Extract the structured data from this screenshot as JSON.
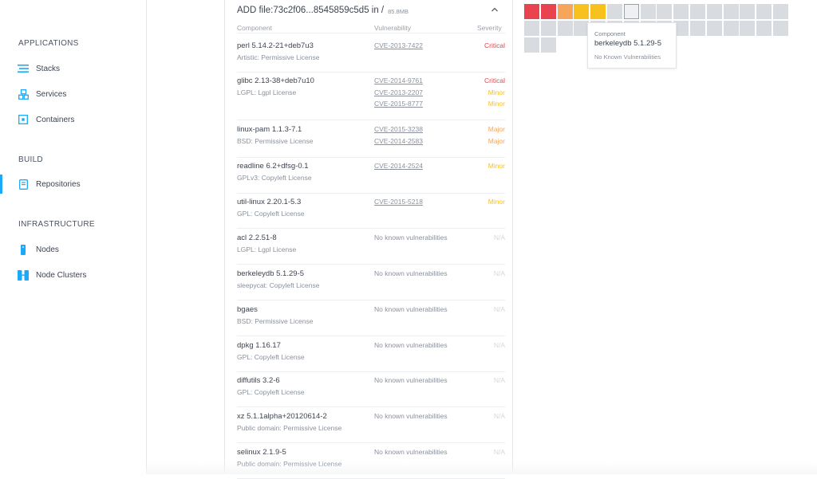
{
  "sidebar": {
    "sections": [
      {
        "title": "APPLICATIONS",
        "items": [
          {
            "label": "Stacks",
            "icon": "stacks-icon"
          },
          {
            "label": "Services",
            "icon": "services-icon"
          },
          {
            "label": "Containers",
            "icon": "containers-icon"
          }
        ]
      },
      {
        "title": "BUILD",
        "items": [
          {
            "label": "Repositories",
            "icon": "repositories-icon",
            "active": true
          }
        ]
      },
      {
        "title": "INFRASTRUCTURE",
        "items": [
          {
            "label": "Nodes",
            "icon": "nodes-icon"
          },
          {
            "label": "Node Clusters",
            "icon": "node-clusters-icon"
          }
        ]
      }
    ]
  },
  "layer": {
    "title": "ADD file:73c2f06...8545859c5d5 in /",
    "size": "85.8MB"
  },
  "columns": {
    "component": "Component",
    "vulnerability": "Vulnerability",
    "severity": "Severity"
  },
  "colors": {
    "critical": "#e8434f",
    "major": "#f6a55b",
    "minor": "#f7c21d",
    "none": "#d8dbe0",
    "accent": "#1aaaf8"
  },
  "components": [
    {
      "name": "perl 5.14.2-21+deb7u3",
      "license": "Artistic: Permissive License",
      "vulns": [
        {
          "id": "CVE-2013-7422",
          "severity": "Critical"
        }
      ]
    },
    {
      "name": "glibc 2.13-38+deb7u10",
      "license": "LGPL: Lgpl License",
      "vulns": [
        {
          "id": "CVE-2014-9761",
          "severity": "Critical"
        },
        {
          "id": "CVE-2013-2207",
          "severity": "Minor"
        },
        {
          "id": "CVE-2015-8777",
          "severity": "Minor"
        }
      ]
    },
    {
      "name": "linux-pam 1.1.3-7.1",
      "license": "BSD: Permissive License",
      "vulns": [
        {
          "id": "CVE-2015-3238",
          "severity": "Major"
        },
        {
          "id": "CVE-2014-2583",
          "severity": "Major"
        }
      ]
    },
    {
      "name": "readline 6.2+dfsg-0.1",
      "license": "GPLv3: Copyleft License",
      "vulns": [
        {
          "id": "CVE-2014-2524",
          "severity": "Minor"
        }
      ]
    },
    {
      "name": "util-linux 2.20.1-5.3",
      "license": "GPL: Copyleft License",
      "vulns": [
        {
          "id": "CVE-2015-5218",
          "severity": "Minor"
        }
      ]
    },
    {
      "name": "acl 2.2.51-8",
      "license": "LGPL: Lgpl License",
      "none": "No known vulnerabilities",
      "na": "N/A"
    },
    {
      "name": "berkeleydb 5.1.29-5",
      "license": "sleepycat: Copyleft License",
      "none": "No known vulnerabilities",
      "na": "N/A"
    },
    {
      "name": "bgaes",
      "license": "BSD: Permissive License",
      "none": "No known vulnerabilities",
      "na": "N/A"
    },
    {
      "name": "dpkg 1.16.17",
      "license": "GPL: Copyleft License",
      "none": "No known vulnerabilities",
      "na": "N/A"
    },
    {
      "name": "diffutils 3.2-6",
      "license": "GPL: Copyleft License",
      "none": "No known vulnerabilities",
      "na": "N/A"
    },
    {
      "name": "xz 5.1.1alpha+20120614-2",
      "license": "Public domain: Permissive License",
      "none": "No known vulnerabilities",
      "na": "N/A"
    },
    {
      "name": "selinux 2.1.9-5",
      "license": "Public domain: Permissive License",
      "none": "No known vulnerabilities",
      "na": "N/A"
    }
  ],
  "grid": {
    "row1": [
      "critical",
      "critical",
      "major",
      "minor",
      "minor",
      "none",
      "selected",
      "none",
      "none",
      "none",
      "none",
      "none",
      "none",
      "none",
      "none",
      "none"
    ],
    "row2": [
      "none",
      "none",
      "none",
      "none",
      "none",
      "none",
      "none",
      "none",
      "none",
      "none",
      "none",
      "none",
      "none",
      "none",
      "none",
      "none"
    ],
    "row3": [
      "none",
      "none"
    ]
  },
  "tooltip": {
    "label": "Component",
    "name": "berkeleydb 5.1.29-5",
    "status": "No Known Vulnerabilities"
  }
}
